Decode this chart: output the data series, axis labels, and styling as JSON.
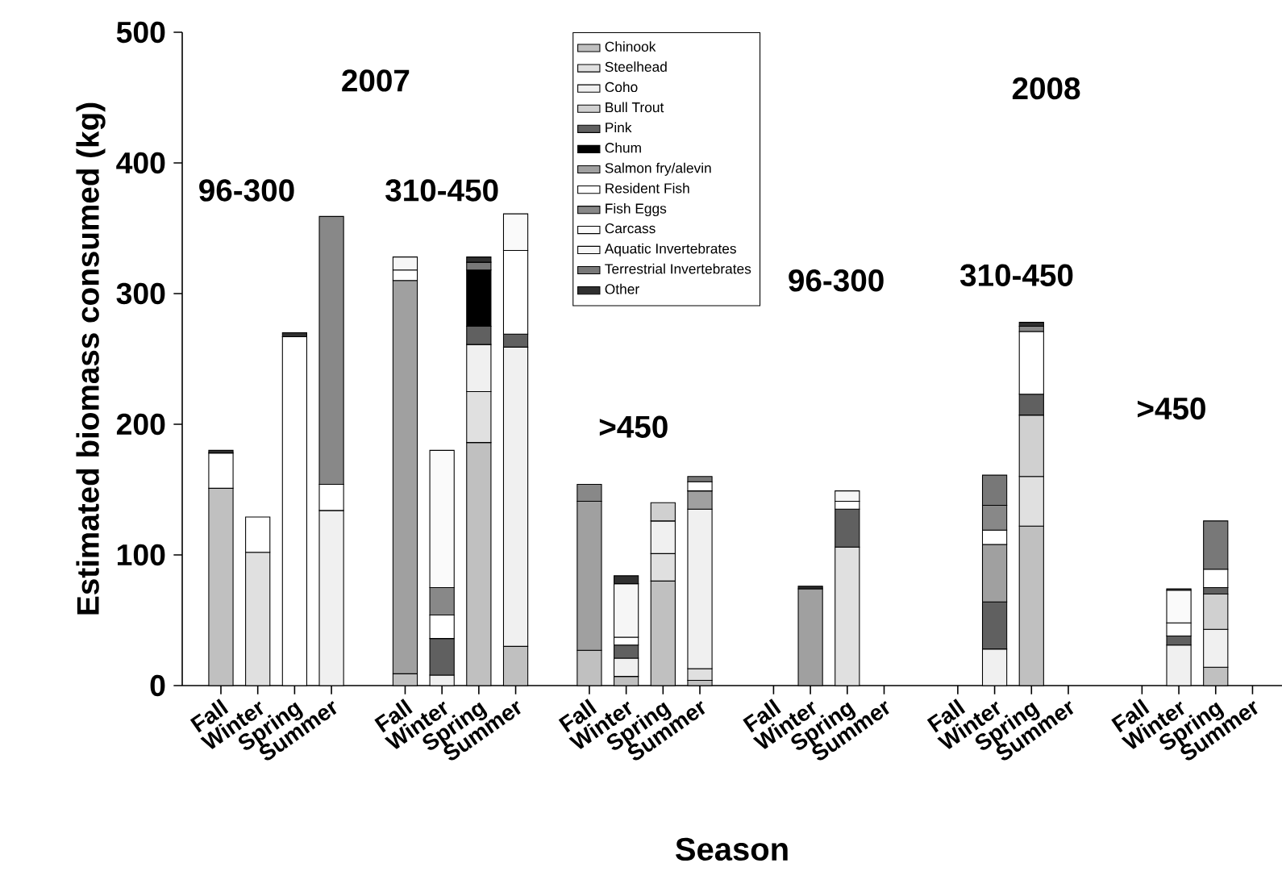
{
  "chart_data": {
    "type": "bar",
    "stacked": true,
    "xlabel": "Season",
    "ylabel": "Estimated biomass consumed (kg)",
    "categories": [
      "Fall",
      "Winter",
      "Spring",
      "Summer",
      null,
      "Fall",
      "Winter",
      "Spring",
      "Summer",
      null,
      "Fall",
      "Winter",
      "Spring",
      "Summer",
      null,
      "Fall",
      "Winter",
      "Spring",
      "Summer",
      null,
      "Fall",
      "Winter",
      "Spring",
      "Summer",
      null,
      "Fall",
      "Winter",
      "Spring",
      "Summer"
    ],
    "ylim": [
      0,
      500
    ],
    "yticks": [
      0,
      100,
      200,
      300,
      400,
      500
    ],
    "legend": "top",
    "annotations": [
      "2007",
      "96-300",
      "310-450",
      ">450",
      "2008",
      "96-300",
      "310-450",
      ">450"
    ],
    "series": [
      {
        "name": "Chinook",
        "color": "#c0c0c0",
        "values": [
          151,
          null,
          null,
          null,
          null,
          9,
          null,
          186,
          30,
          null,
          27,
          7,
          80,
          4,
          null,
          null,
          null,
          null,
          null,
          null,
          null,
          null,
          122,
          null,
          null,
          null,
          null,
          14,
          null
        ]
      },
      {
        "name": "Steelhead",
        "color": "#e0e0e0",
        "values": [
          null,
          102,
          null,
          null,
          null,
          null,
          null,
          39,
          null,
          null,
          null,
          null,
          21,
          9,
          null,
          null,
          null,
          106,
          null,
          null,
          null,
          null,
          38,
          null,
          null,
          null,
          null,
          null,
          null
        ]
      },
      {
        "name": "Coho",
        "color": "#f0f0f0",
        "values": [
          null,
          null,
          null,
          134,
          null,
          null,
          8,
          36,
          229,
          null,
          null,
          14,
          25,
          122,
          null,
          null,
          null,
          null,
          null,
          null,
          null,
          28,
          null,
          null,
          null,
          null,
          31,
          29,
          null
        ]
      },
      {
        "name": "Bull Trout",
        "color": "#d0d0d0",
        "values": [
          null,
          null,
          null,
          null,
          null,
          null,
          null,
          null,
          null,
          null,
          null,
          null,
          14,
          null,
          null,
          null,
          null,
          null,
          null,
          null,
          null,
          null,
          47,
          null,
          null,
          null,
          null,
          27,
          null
        ]
      },
      {
        "name": "Pink",
        "color": "#606060",
        "values": [
          null,
          null,
          null,
          null,
          null,
          null,
          28,
          14,
          10,
          null,
          null,
          10,
          null,
          null,
          null,
          null,
          null,
          29,
          null,
          null,
          null,
          36,
          16,
          null,
          null,
          null,
          7,
          5,
          null
        ]
      },
      {
        "name": "Chum",
        "color": "#000000",
        "values": [
          null,
          null,
          null,
          null,
          null,
          null,
          null,
          43,
          null,
          null,
          null,
          null,
          null,
          null,
          null,
          null,
          null,
          null,
          null,
          null,
          null,
          null,
          null,
          null,
          null,
          null,
          null,
          null,
          null
        ]
      },
      {
        "name": "Salmon fry/alevin",
        "color": "#a0a0a0",
        "values": [
          null,
          null,
          null,
          null,
          null,
          301,
          null,
          null,
          null,
          null,
          114,
          null,
          null,
          14,
          null,
          null,
          74,
          null,
          null,
          null,
          null,
          44,
          null,
          null,
          null,
          null,
          null,
          null,
          null
        ]
      },
      {
        "name": "Resident Fish",
        "color": "#ffffff",
        "values": [
          27,
          27,
          267,
          20,
          null,
          8,
          18,
          null,
          64,
          null,
          null,
          6,
          null,
          7,
          null,
          null,
          null,
          6,
          null,
          null,
          null,
          11,
          48,
          null,
          null,
          null,
          10,
          14,
          null
        ]
      },
      {
        "name": "Fish Eggs",
        "color": "#888888",
        "values": [
          null,
          null,
          null,
          205,
          null,
          null,
          21,
          null,
          null,
          null,
          13,
          null,
          null,
          null,
          null,
          null,
          null,
          null,
          null,
          null,
          null,
          19,
          4,
          null,
          null,
          null,
          null,
          null,
          null
        ]
      },
      {
        "name": "Carcass",
        "color": "#fafafa",
        "values": [
          null,
          null,
          null,
          null,
          null,
          null,
          105,
          null,
          28,
          null,
          null,
          null,
          null,
          null,
          null,
          null,
          null,
          null,
          null,
          null,
          null,
          null,
          null,
          null,
          null,
          null,
          25,
          null,
          null
        ]
      },
      {
        "name": "Aquatic Invertebrates",
        "color": "#f6f6f6",
        "values": [
          null,
          null,
          null,
          null,
          null,
          10,
          null,
          null,
          null,
          null,
          null,
          41,
          null,
          null,
          null,
          null,
          null,
          8,
          null,
          null,
          null,
          null,
          null,
          null,
          null,
          null,
          null,
          null,
          null
        ]
      },
      {
        "name": "Terrestrial Invertebrates",
        "color": "#787878",
        "values": [
          null,
          null,
          null,
          null,
          null,
          null,
          null,
          6,
          null,
          null,
          null,
          null,
          null,
          4,
          null,
          null,
          null,
          null,
          null,
          null,
          null,
          23,
          null,
          null,
          null,
          null,
          null,
          37,
          null
        ]
      },
      {
        "name": "Other",
        "color": "#303030",
        "values": [
          2,
          null,
          3,
          null,
          null,
          null,
          null,
          4,
          null,
          null,
          null,
          6,
          null,
          null,
          null,
          null,
          2,
          null,
          null,
          null,
          null,
          null,
          3,
          null,
          null,
          null,
          1,
          null,
          null
        ]
      }
    ]
  }
}
